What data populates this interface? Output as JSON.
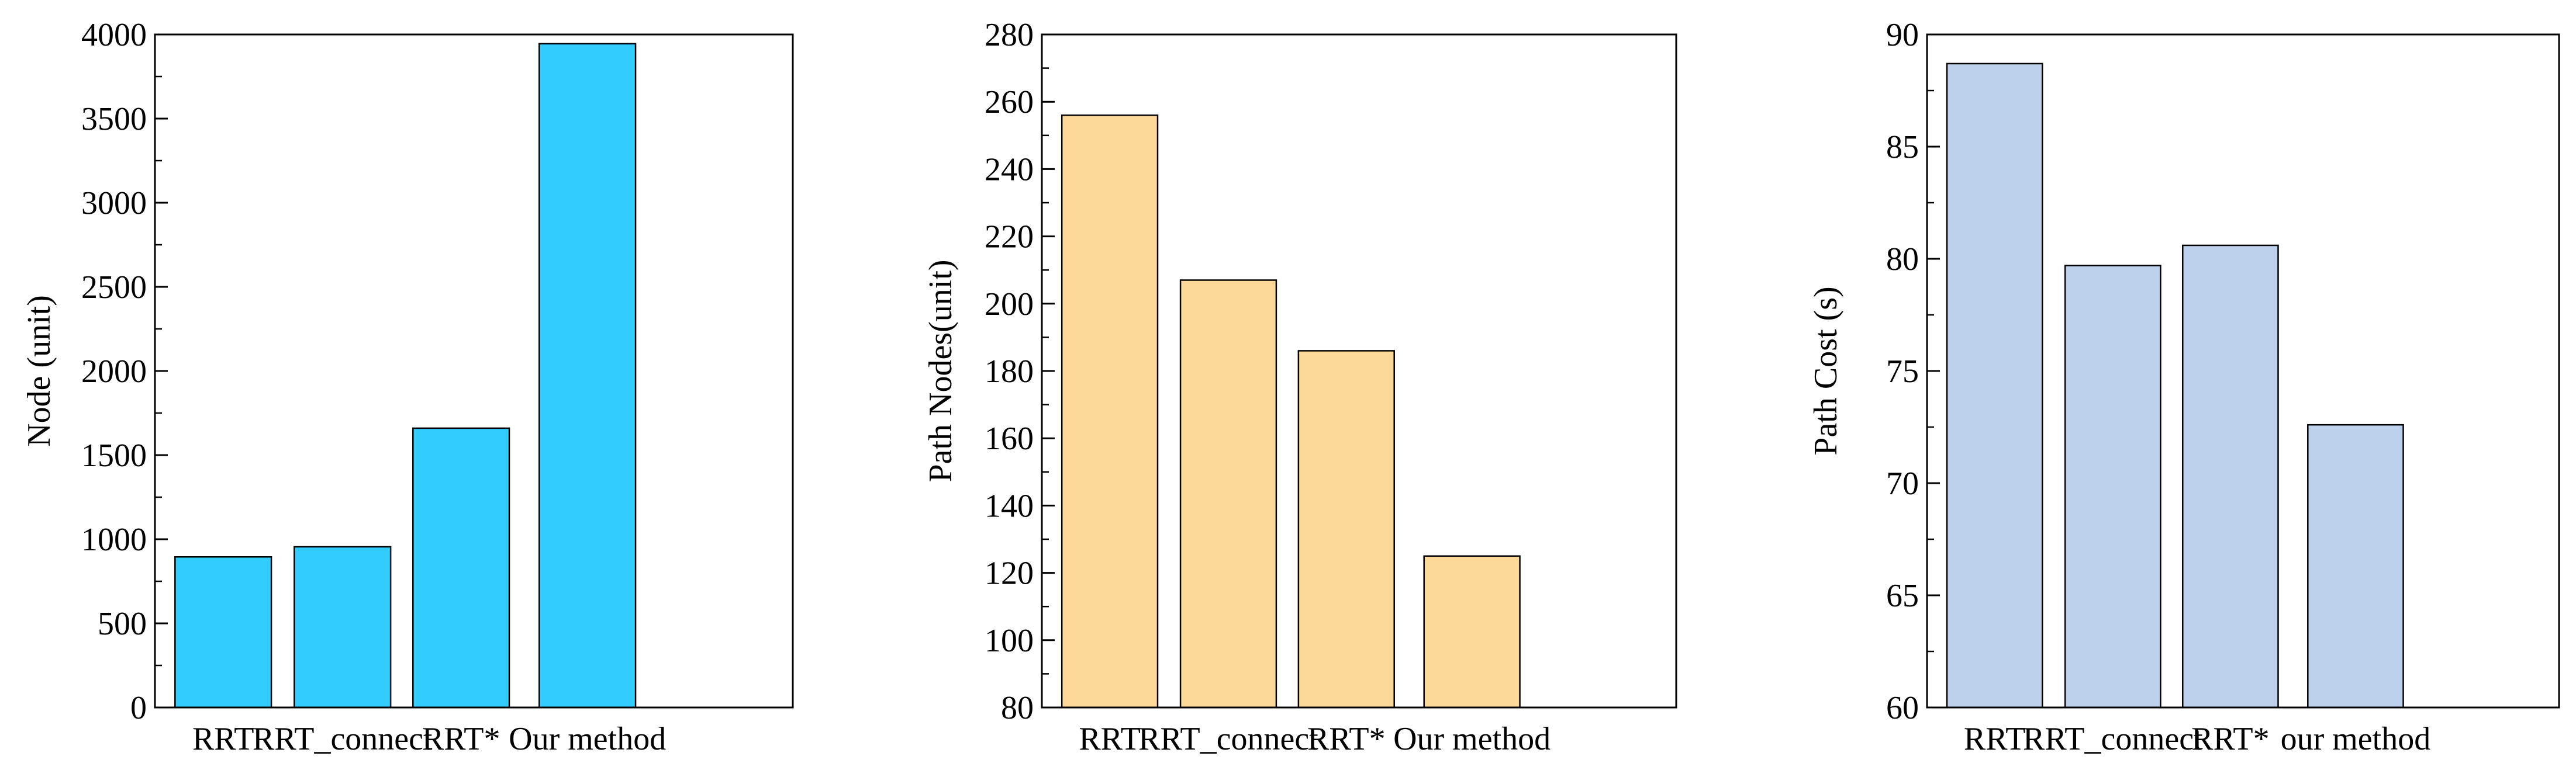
{
  "chart_data": [
    {
      "type": "bar",
      "categories": [
        "RRT",
        "RRT_connect",
        "RRT*",
        "Our method"
      ],
      "values": [
        895,
        955,
        1660,
        3945
      ],
      "ylabel": "Node (unit)",
      "xlabel": "",
      "ylim": [
        0,
        4000
      ],
      "yticks": [
        0,
        500,
        1000,
        1500,
        2000,
        2500,
        3000,
        3500,
        4000
      ],
      "minor_step": 250,
      "bar_color": "#33CCFF",
      "grid": false
    },
    {
      "type": "bar",
      "categories": [
        "RRT",
        "RRT_connect",
        "RRT*",
        "Our method"
      ],
      "values": [
        256,
        207,
        186,
        125
      ],
      "ylabel": "Path Nodes(unit)",
      "xlabel": "",
      "ylim": [
        80,
        280
      ],
      "yticks": [
        80,
        100,
        120,
        140,
        160,
        180,
        200,
        220,
        240,
        260,
        280
      ],
      "minor_step": 10,
      "bar_color": "#FCD899",
      "grid": false
    },
    {
      "type": "bar",
      "categories": [
        "RRT",
        "RRT_connect",
        "RRT*",
        "our method"
      ],
      "values": [
        88.7,
        79.7,
        80.6,
        72.6
      ],
      "ylabel": "Path Cost (s)",
      "xlabel": "",
      "ylim": [
        60,
        90
      ],
      "yticks": [
        60,
        65,
        70,
        75,
        80,
        85,
        90
      ],
      "minor_step": 2.5,
      "bar_color": "#BDD1EC",
      "grid": false
    }
  ]
}
